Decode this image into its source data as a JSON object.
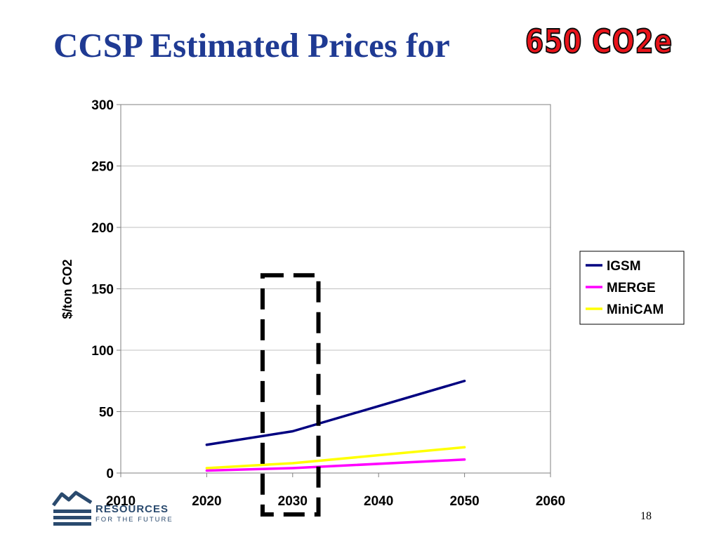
{
  "slide": {
    "title": "CCSP Estimated Prices for",
    "title_highlight": "650 CO2e",
    "page_number": "18",
    "logo": {
      "line1": "RESOURCES",
      "line2": "FOR THE FUTURE"
    }
  },
  "colors": {
    "title": "#1f3a93",
    "highlight": "#e8141b",
    "igsm": "#000080",
    "merge": "#ff00ff",
    "minicam": "#ffff00"
  },
  "chart_data": {
    "type": "line",
    "title": "",
    "xlabel": "",
    "ylabel": "$/ton CO2",
    "x": [
      2020,
      2030,
      2050
    ],
    "xlim": [
      2010,
      2060
    ],
    "ylim": [
      0,
      300
    ],
    "x_ticks": [
      "2010",
      "2020",
      "2030",
      "2040",
      "2050",
      "2060"
    ],
    "y_ticks": [
      "0",
      "50",
      "100",
      "150",
      "200",
      "250",
      "300"
    ],
    "grid": true,
    "legend_position": "right",
    "series": [
      {
        "name": "IGSM",
        "color": "#000080",
        "values": [
          23,
          34,
          75
        ]
      },
      {
        "name": "MERGE",
        "color": "#ff00ff",
        "values": [
          2,
          4,
          11
        ]
      },
      {
        "name": "MiniCAM",
        "color": "#ffff00",
        "values": [
          4,
          8,
          21
        ]
      }
    ],
    "annotation": {
      "type": "dashed-box",
      "x_range": [
        2026.5,
        2033
      ],
      "y_top": 161
    }
  }
}
